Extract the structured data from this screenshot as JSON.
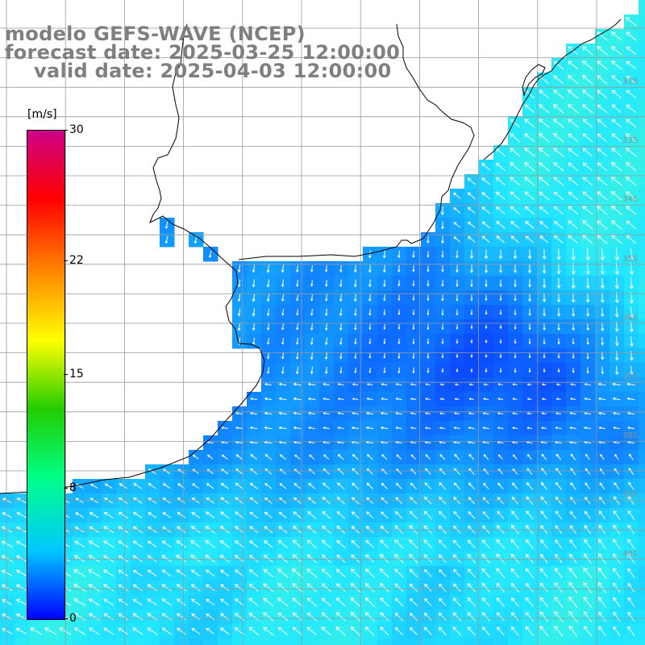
{
  "title": {
    "line1": "modelo GEFS-WAVE (NCEP)",
    "line2": "forecast date: 2025-03-25 12:00:00",
    "line3": "valid date: 2025-04-03 12:00:00"
  },
  "colorbar": {
    "unit": "[m/s]",
    "ticks": [
      {
        "label": "30",
        "value": 30
      },
      {
        "label": "22",
        "value": 22
      },
      {
        "label": "15",
        "value": 15
      },
      {
        "label": "8",
        "value": 8
      },
      {
        "label": "0",
        "value": 0
      }
    ],
    "range": [
      0,
      30
    ],
    "stops": [
      "#0000ff",
      "#00c8ff",
      "#00ff88",
      "#22cc00",
      "#ffff00",
      "#ff8800",
      "#ff0000",
      "#cc0088"
    ]
  },
  "lat_labels": [
    "32S",
    "33S",
    "34S",
    "35S",
    "36S",
    "37S",
    "38S",
    "39S",
    "40S"
  ],
  "colors": {
    "land": "#ffffff",
    "grid": "#9a9a9a",
    "coast": "#000000",
    "vectors": "#ffffff",
    "low_wind": "#0a3cff",
    "mid_wind": "#14aaff",
    "high_wind": "#22e6ff"
  },
  "icons": [
    "wind-vector-arrow"
  ]
}
